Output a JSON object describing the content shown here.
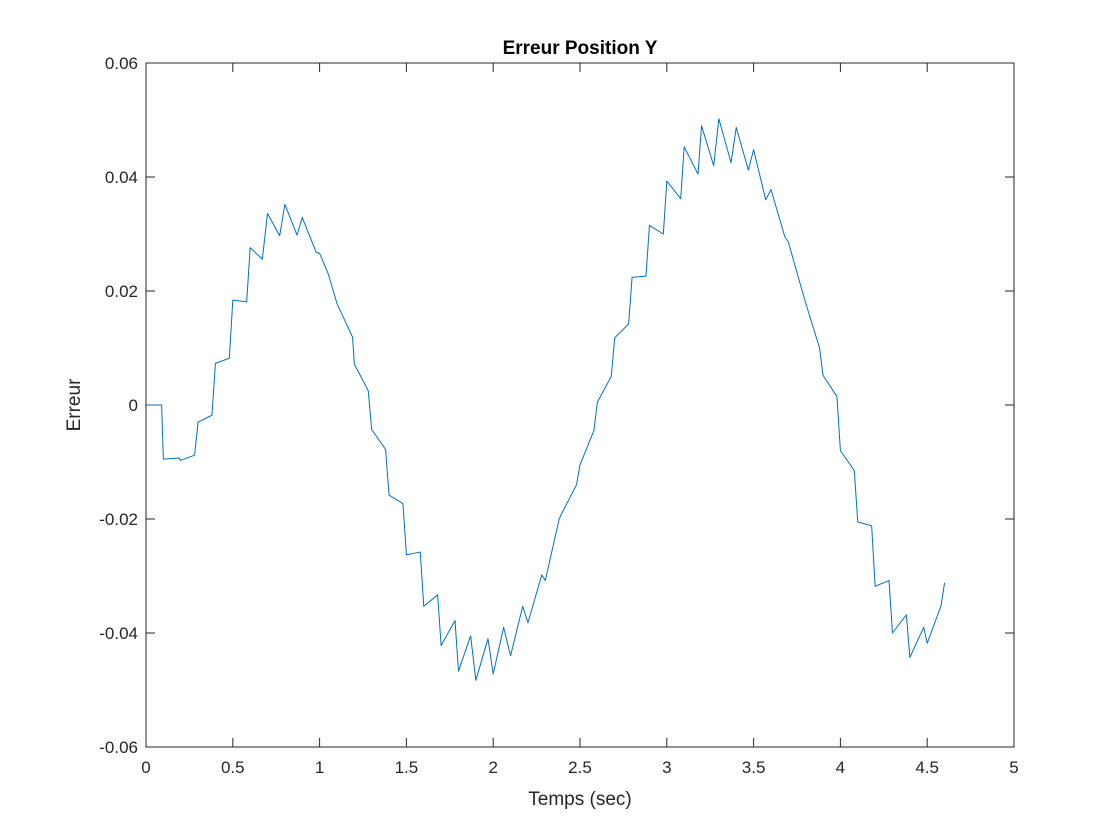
{
  "chart_data": {
    "type": "line",
    "title": "Erreur Position Y",
    "xlabel": "Temps (sec)",
    "ylabel": "Erreur",
    "xlim": [
      0,
      5
    ],
    "ylim": [
      -0.06,
      0.06
    ],
    "xticks": [
      0,
      0.5,
      1,
      1.5,
      2,
      2.5,
      3,
      3.5,
      4,
      4.5,
      5
    ],
    "xtick_labels": [
      "0",
      "0.5",
      "1",
      "1.5",
      "2",
      "2.5",
      "3",
      "3.5",
      "4",
      "4.5",
      "5"
    ],
    "yticks": [
      -0.06,
      -0.04,
      -0.02,
      0,
      0.02,
      0.04,
      0.06
    ],
    "ytick_labels": [
      "-0.06",
      "-0.04",
      "-0.02",
      "0",
      "0.02",
      "0.04",
      "0.06"
    ],
    "grid": false,
    "box": true,
    "line_color": "#0072BD",
    "series": [
      {
        "x": [
          0,
          0.09,
          0.1,
          0.19,
          0.2,
          0.28,
          0.3,
          0.38,
          0.4,
          0.48,
          0.5,
          0.58,
          0.6,
          0.67,
          0.7,
          0.77,
          0.8,
          0.87,
          0.9,
          0.98,
          1.0,
          1.05,
          1.1,
          1.19,
          1.2,
          1.28,
          1.3,
          1.38,
          1.4,
          1.48,
          1.5,
          1.58,
          1.6,
          1.68,
          1.7,
          1.78,
          1.8,
          1.87,
          1.9,
          1.97,
          2.0,
          2.06,
          2.1,
          2.17,
          2.2,
          2.28,
          2.3,
          2.38,
          2.4,
          2.48,
          2.5,
          2.58,
          2.6,
          2.68,
          2.7,
          2.78,
          2.8,
          2.88,
          2.9,
          2.98,
          3.0,
          3.08,
          3.1,
          3.18,
          3.2,
          3.27,
          3.3,
          3.37,
          3.4,
          3.47,
          3.5,
          3.57,
          3.6,
          3.68,
          3.7,
          3.78,
          3.8,
          3.88,
          3.9,
          3.98,
          4.0,
          4.08,
          4.1,
          4.18,
          4.2,
          4.28,
          4.3,
          4.38,
          4.4,
          4.48,
          4.5,
          4.58,
          4.6
        ],
        "y": [
          0.0,
          0.0,
          -0.0095,
          -0.0093,
          -0.0097,
          -0.0088,
          -0.003,
          -0.0018,
          0.0073,
          0.0082,
          0.0184,
          0.0181,
          0.0276,
          0.0256,
          0.0336,
          0.0297,
          0.0352,
          0.0298,
          0.0329,
          0.0268,
          0.0266,
          0.023,
          0.0178,
          0.0119,
          0.0072,
          0.0025,
          -0.0043,
          -0.0078,
          -0.0158,
          -0.0173,
          -0.0263,
          -0.0258,
          -0.0353,
          -0.0333,
          -0.0422,
          -0.0378,
          -0.0467,
          -0.0405,
          -0.0483,
          -0.041,
          -0.0472,
          -0.039,
          -0.044,
          -0.0353,
          -0.0382,
          -0.0298,
          -0.0308,
          -0.02,
          -0.0187,
          -0.014,
          -0.0105,
          -0.0045,
          0.0005,
          0.005,
          0.0118,
          0.0142,
          0.0224,
          0.0226,
          0.0315,
          0.03,
          0.0393,
          0.0362,
          0.0453,
          0.0405,
          0.049,
          0.042,
          0.0502,
          0.0425,
          0.0487,
          0.0412,
          0.0448,
          0.036,
          0.0378,
          0.0295,
          0.0286,
          0.02,
          0.0179,
          0.01,
          0.0052,
          0.0015,
          -0.008,
          -0.0115,
          -0.0205,
          -0.0212,
          -0.0318,
          -0.0308,
          -0.04,
          -0.0368,
          -0.0443,
          -0.039,
          -0.0418,
          -0.0352,
          -0.0312
        ]
      }
    ]
  }
}
